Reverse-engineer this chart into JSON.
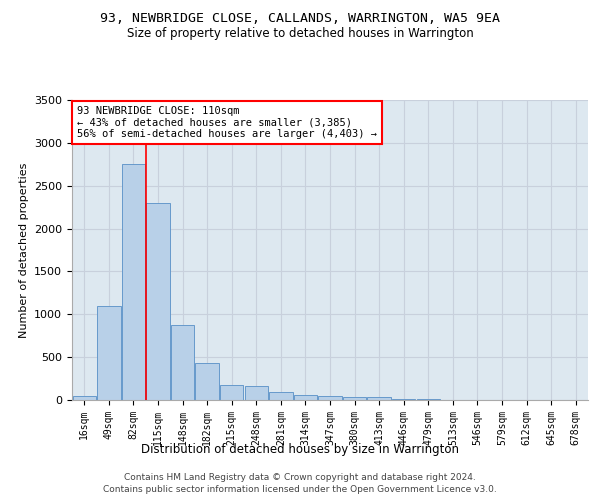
{
  "title": "93, NEWBRIDGE CLOSE, CALLANDS, WARRINGTON, WA5 9EA",
  "subtitle": "Size of property relative to detached houses in Warrington",
  "xlabel": "Distribution of detached houses by size in Warrington",
  "ylabel": "Number of detached properties",
  "categories": [
    "16sqm",
    "49sqm",
    "82sqm",
    "115sqm",
    "148sqm",
    "182sqm",
    "215sqm",
    "248sqm",
    "281sqm",
    "314sqm",
    "347sqm",
    "380sqm",
    "413sqm",
    "446sqm",
    "479sqm",
    "513sqm",
    "546sqm",
    "579sqm",
    "612sqm",
    "645sqm",
    "678sqm"
  ],
  "values": [
    50,
    1100,
    2750,
    2300,
    880,
    430,
    175,
    165,
    90,
    60,
    50,
    40,
    30,
    15,
    8,
    5,
    3,
    2,
    1,
    1,
    1
  ],
  "bar_color": "#b8d0e8",
  "bar_edgecolor": "#6699cc",
  "vline_color": "red",
  "annotation_text": "93 NEWBRIDGE CLOSE: 110sqm\n← 43% of detached houses are smaller (3,385)\n56% of semi-detached houses are larger (4,403) →",
  "annotation_box_color": "white",
  "annotation_box_edgecolor": "red",
  "ylim": [
    0,
    3500
  ],
  "yticks": [
    0,
    500,
    1000,
    1500,
    2000,
    2500,
    3000,
    3500
  ],
  "grid_color": "#c8d0dc",
  "bg_color": "#dde8f0",
  "footer1": "Contains HM Land Registry data © Crown copyright and database right 2024.",
  "footer2": "Contains public sector information licensed under the Open Government Licence v3.0."
}
